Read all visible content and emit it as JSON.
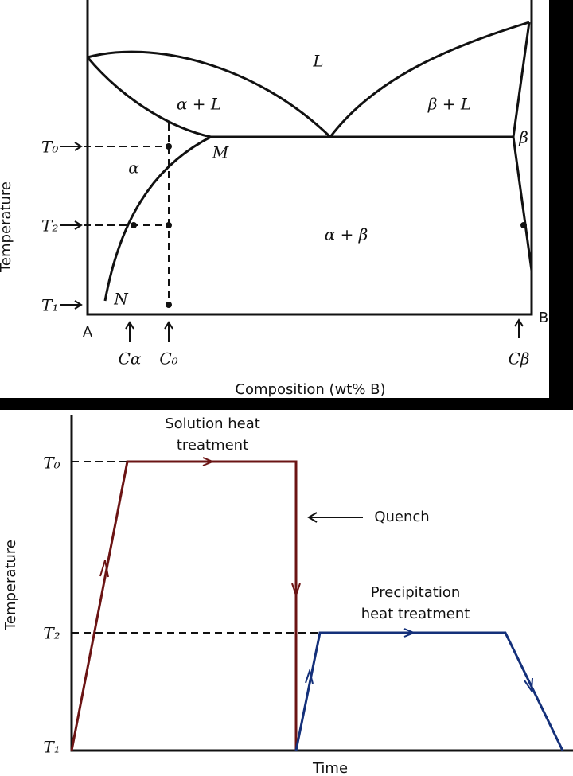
{
  "phase_diagram": {
    "temperatures": [
      "T₀",
      "T₂",
      "T₁"
    ],
    "y_axis_label": "Temperature",
    "x_axis_label": "Composition (wt% B)",
    "ends": [
      "A",
      "B"
    ],
    "compositions": [
      "Cα",
      "C₀",
      "Cβ"
    ],
    "regions": [
      "L",
      "α + L",
      "β + L",
      "β",
      "α",
      "α + β"
    ],
    "points": [
      "M",
      "N"
    ]
  },
  "heat_treatment": {
    "temperatures": [
      "T₀",
      "T₂",
      "T₁"
    ],
    "y_axis_label": "Temperature",
    "x_axis_label": "Time",
    "solution": [
      "Solution heat",
      "treatment"
    ],
    "quench": "Quench",
    "precipitation": [
      "Precipitation",
      "heat treatment"
    ]
  }
}
